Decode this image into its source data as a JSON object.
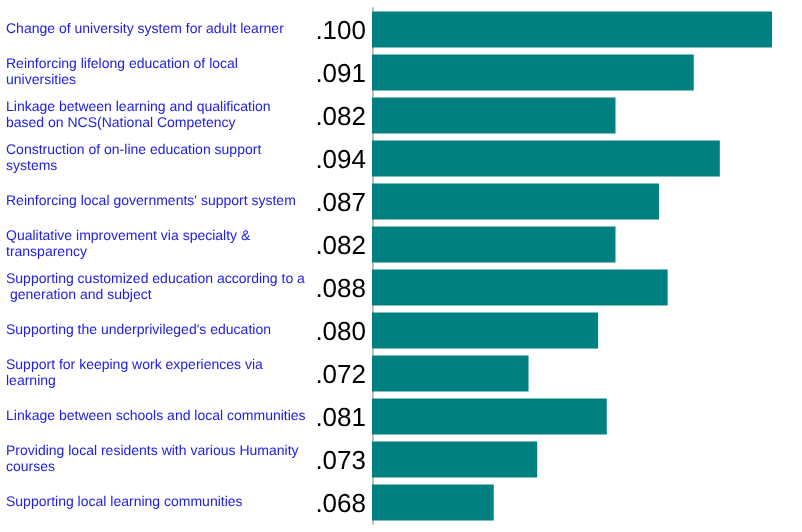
{
  "chart_data": {
    "type": "bar",
    "orientation": "horizontal",
    "categories": [
      "Change of university system for adult learner",
      "Reinforcing lifelong education of local universities",
      "Linkage between learning and qualification based on NCS(National Competency",
      "Construction of on-line education support systems",
      "Reinforcing local governments' support system",
      "Qualitative improvement via specialty & transparency",
      "Supporting customized education according to a generation and subject",
      "Supporting the underprivileged's education",
      "Support for keeping work experiences via learning",
      "Linkage between schools and local communities",
      "Providing local residents with various Humanity courses",
      "Supporting local learning communities"
    ],
    "values": [
      0.1,
      0.091,
      0.082,
      0.094,
      0.087,
      0.082,
      0.088,
      0.08,
      0.072,
      0.081,
      0.073,
      0.068
    ],
    "value_labels": [
      ".100",
      ".091",
      ".082",
      ".094",
      ".087",
      ".082",
      ".088",
      ".080",
      ".072",
      ".081",
      ".073",
      ".068"
    ],
    "color": "#008080",
    "xlim": [
      0.054,
      0.1
    ]
  }
}
